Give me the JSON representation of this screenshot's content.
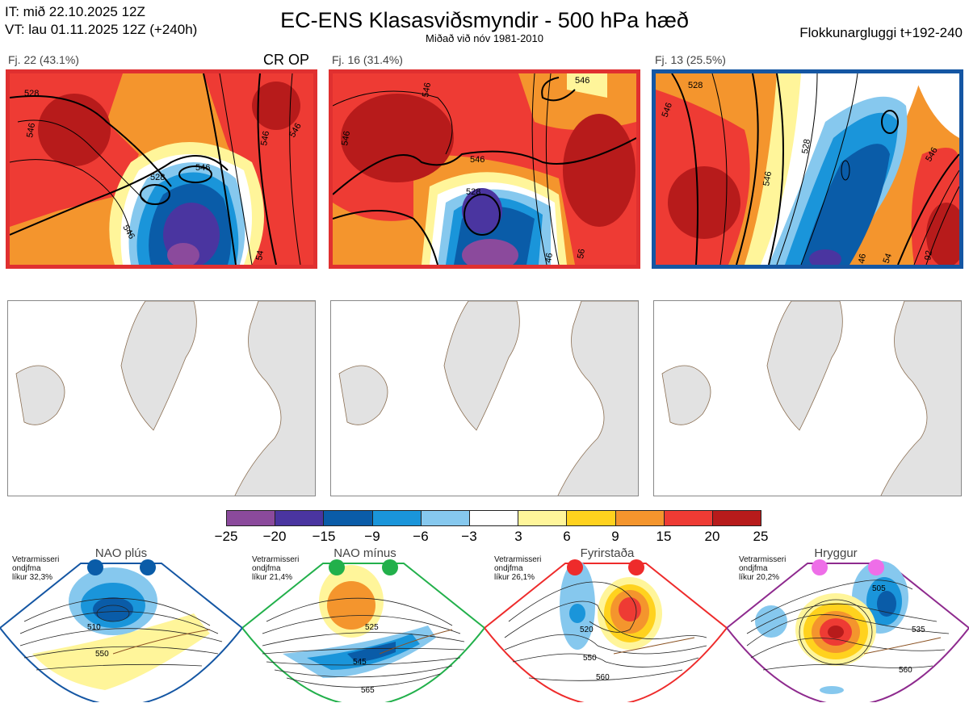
{
  "header": {
    "it_line": "IT: mið 22.10.2025 12Z",
    "vt_line": "VT: lau 01.11.2025 12Z  (+240h)",
    "title": "EC-ENS Klasasviðsmyndir - 500 hPa hæð",
    "subtitle": "Miðað við nóv 1981-2010",
    "window": "Flokkunargluggi t+192-240"
  },
  "panels": [
    {
      "label": "Fj. 22 (43.1%)",
      "tag": "CR OP",
      "border_color": "#e03030",
      "contours": [
        "528",
        "546",
        "528",
        "546",
        "546",
        "546",
        "546",
        "54"
      ]
    },
    {
      "label": "Fj. 16 (31.4%)",
      "tag": "",
      "border_color": "#e03030",
      "contours": [
        "546",
        "546",
        "546",
        "546",
        "528",
        "46",
        "56"
      ]
    },
    {
      "label": "Fj. 13 (25.5%)",
      "tag": "",
      "border_color": "#1456a3",
      "contours": [
        "528",
        "546",
        "528",
        "546",
        "546",
        "54",
        "46",
        "92"
      ]
    }
  ],
  "colorbar": {
    "colors": [
      "#8b4a9c",
      "#4a35a0",
      "#0a5ca8",
      "#1a95da",
      "#86c8ee",
      "#ffffff",
      "#fff59a",
      "#ffd21e",
      "#f4952d",
      "#ee3b34",
      "#b71b1b"
    ],
    "ticks": [
      "−25",
      "−20",
      "−15",
      "−9",
      "−6",
      "−3",
      "3",
      "6",
      "9",
      "15",
      "20",
      "25"
    ]
  },
  "regimes": [
    {
      "name": "NAO plús",
      "info": [
        "Vetrarmisseri",
        "ondjfma",
        "líkur 32,3%"
      ],
      "dot_color": "#0a5ca8",
      "border_color": "#1456a3",
      "contours": [
        "510",
        "550"
      ]
    },
    {
      "name": "NAO mínus",
      "info": [
        "Vetrarmisseri",
        "ondjfma",
        "líkur 21,4%"
      ],
      "dot_color": "#22b04b",
      "border_color": "#22b04b",
      "contours": [
        "525",
        "545",
        "565"
      ]
    },
    {
      "name": "Fyrirstaða",
      "info": [
        "Vetrarmisseri",
        "ondjfma",
        "líkur 26,1%"
      ],
      "dot_color": "#ee2b2b",
      "border_color": "#ee2b2b",
      "contours": [
        "520",
        "550",
        "560"
      ]
    },
    {
      "name": "Hryggur",
      "info": [
        "Vetrarmisseri",
        "ondjfma",
        "líkur 20,2%"
      ],
      "dot_color": "#ee6ee8",
      "border_color": "#8e2a8e",
      "contours": [
        "505",
        "535",
        "560"
      ]
    }
  ]
}
